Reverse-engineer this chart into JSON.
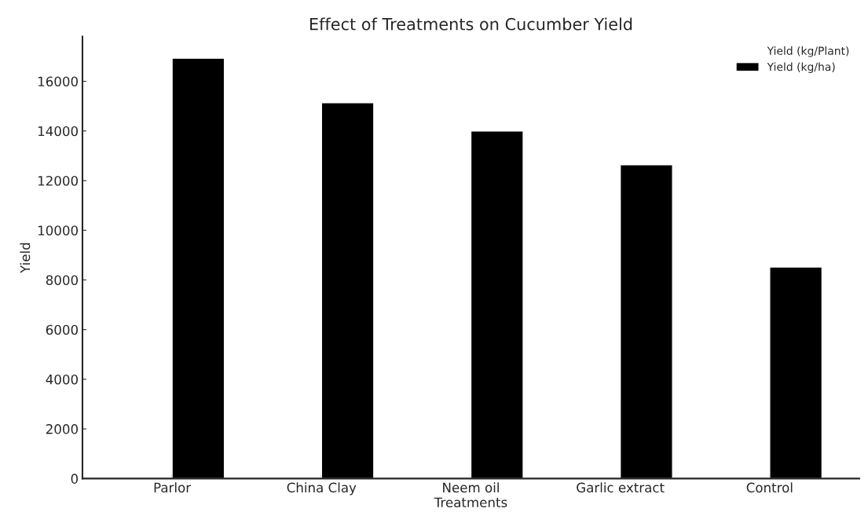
{
  "chart_data": {
    "type": "bar",
    "title": "Effect of Treatments on Cucumber Yield",
    "xlabel": "Treatments",
    "ylabel": "Yield",
    "categories": [
      "Parlor",
      "China Clay",
      "Neem oil",
      "Garlic extract",
      "Control"
    ],
    "series": [
      {
        "name": "Yield (kg/Plant)",
        "values": [
          null,
          null,
          null,
          null,
          null
        ]
      },
      {
        "name": "Yield (kg/ha)",
        "color": "#000000",
        "values": [
          16930,
          15140,
          14000,
          12640,
          8520
        ]
      }
    ],
    "ylim": [
      0,
      17800
    ],
    "yticks": [
      0,
      2000,
      4000,
      6000,
      8000,
      10000,
      12000,
      14000,
      16000
    ],
    "grid": false,
    "legend": "top right"
  }
}
